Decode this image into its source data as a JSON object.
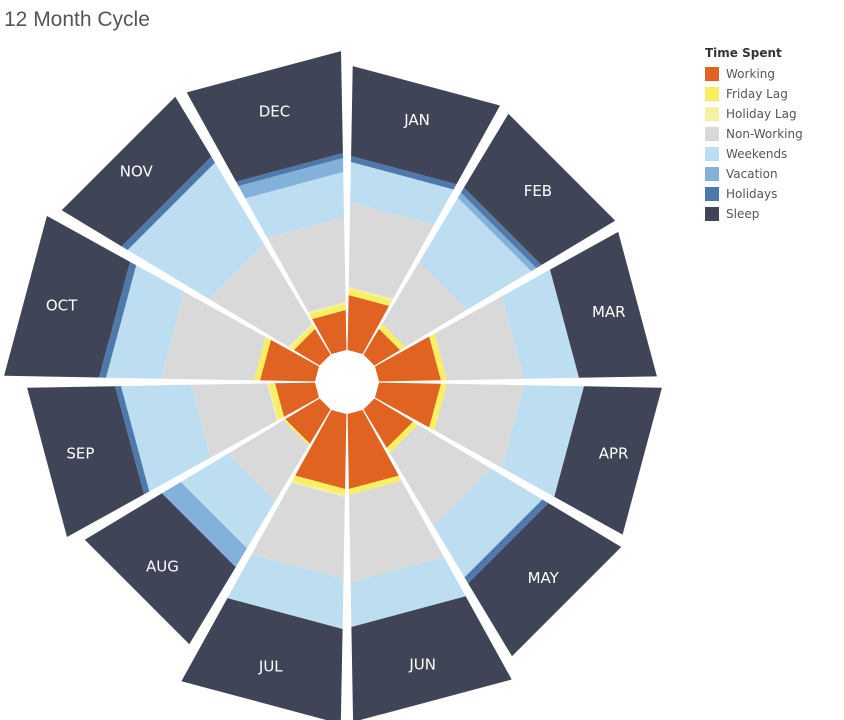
{
  "title": "12 Month Cycle",
  "legend": {
    "title": "Time Spent",
    "items": [
      {
        "label": "Working",
        "color": "#e06321"
      },
      {
        "label": "Friday Lag",
        "color": "#f8f060"
      },
      {
        "label": "Holiday Lag",
        "color": "#f5f0a2"
      },
      {
        "label": "Non-Working",
        "color": "#d9d9d9"
      },
      {
        "label": "Weekends",
        "color": "#bcdef0"
      },
      {
        "label": "Vacation",
        "color": "#83b1d9"
      },
      {
        "label": "Holidays",
        "color": "#4f79aa"
      },
      {
        "label": "Sleep",
        "color": "#3f4556"
      }
    ]
  },
  "chart_data": {
    "type": "radial stacked bar",
    "categories": [
      "JAN",
      "FEB",
      "MAR",
      "APR",
      "MAY",
      "JUN",
      "JUL",
      "AUG",
      "SEP",
      "OCT",
      "NOV",
      "DEC"
    ],
    "series": [
      {
        "name": "Working",
        "color": "#e06321",
        "values": [
          55,
          30,
          62,
          62,
          45,
          75,
          75,
          40,
          40,
          55,
          30,
          40
        ]
      },
      {
        "name": "Friday Lag",
        "color": "#f8f060",
        "values": [
          6,
          6,
          6,
          6,
          6,
          6,
          6,
          2,
          6,
          6,
          4,
          6
        ]
      },
      {
        "name": "Holiday Lag",
        "color": "#f5f0a2",
        "values": [
          2,
          0,
          0,
          0,
          0,
          0,
          2,
          0,
          2,
          0,
          2,
          2
        ]
      },
      {
        "name": "Non-Working",
        "color": "#d9d9d9",
        "values": [
          85,
          72,
          77,
          77,
          85,
          87,
          82,
          65,
          76,
          93,
          93,
          85
        ]
      },
      {
        "name": "Weekends",
        "color": "#bcdef0",
        "values": [
          40,
          75,
          55,
          60,
          60,
          45,
          50,
          55,
          70,
          55,
          95,
          45
        ]
      },
      {
        "name": "Vacation",
        "color": "#83b1d9",
        "values": [
          0,
          6,
          0,
          0,
          0,
          0,
          0,
          22,
          0,
          0,
          0,
          14
        ]
      },
      {
        "name": "Holidays",
        "color": "#4f79aa",
        "values": [
          6,
          6,
          0,
          0,
          7,
          0,
          0,
          0,
          6,
          7,
          7,
          5
        ]
      },
      {
        "name": "Sleep",
        "color": "#3f4556",
        "values": [
          90,
          86,
          78,
          78,
          85,
          95,
          95,
          90,
          88,
          95,
          70,
          102
        ]
      }
    ]
  }
}
